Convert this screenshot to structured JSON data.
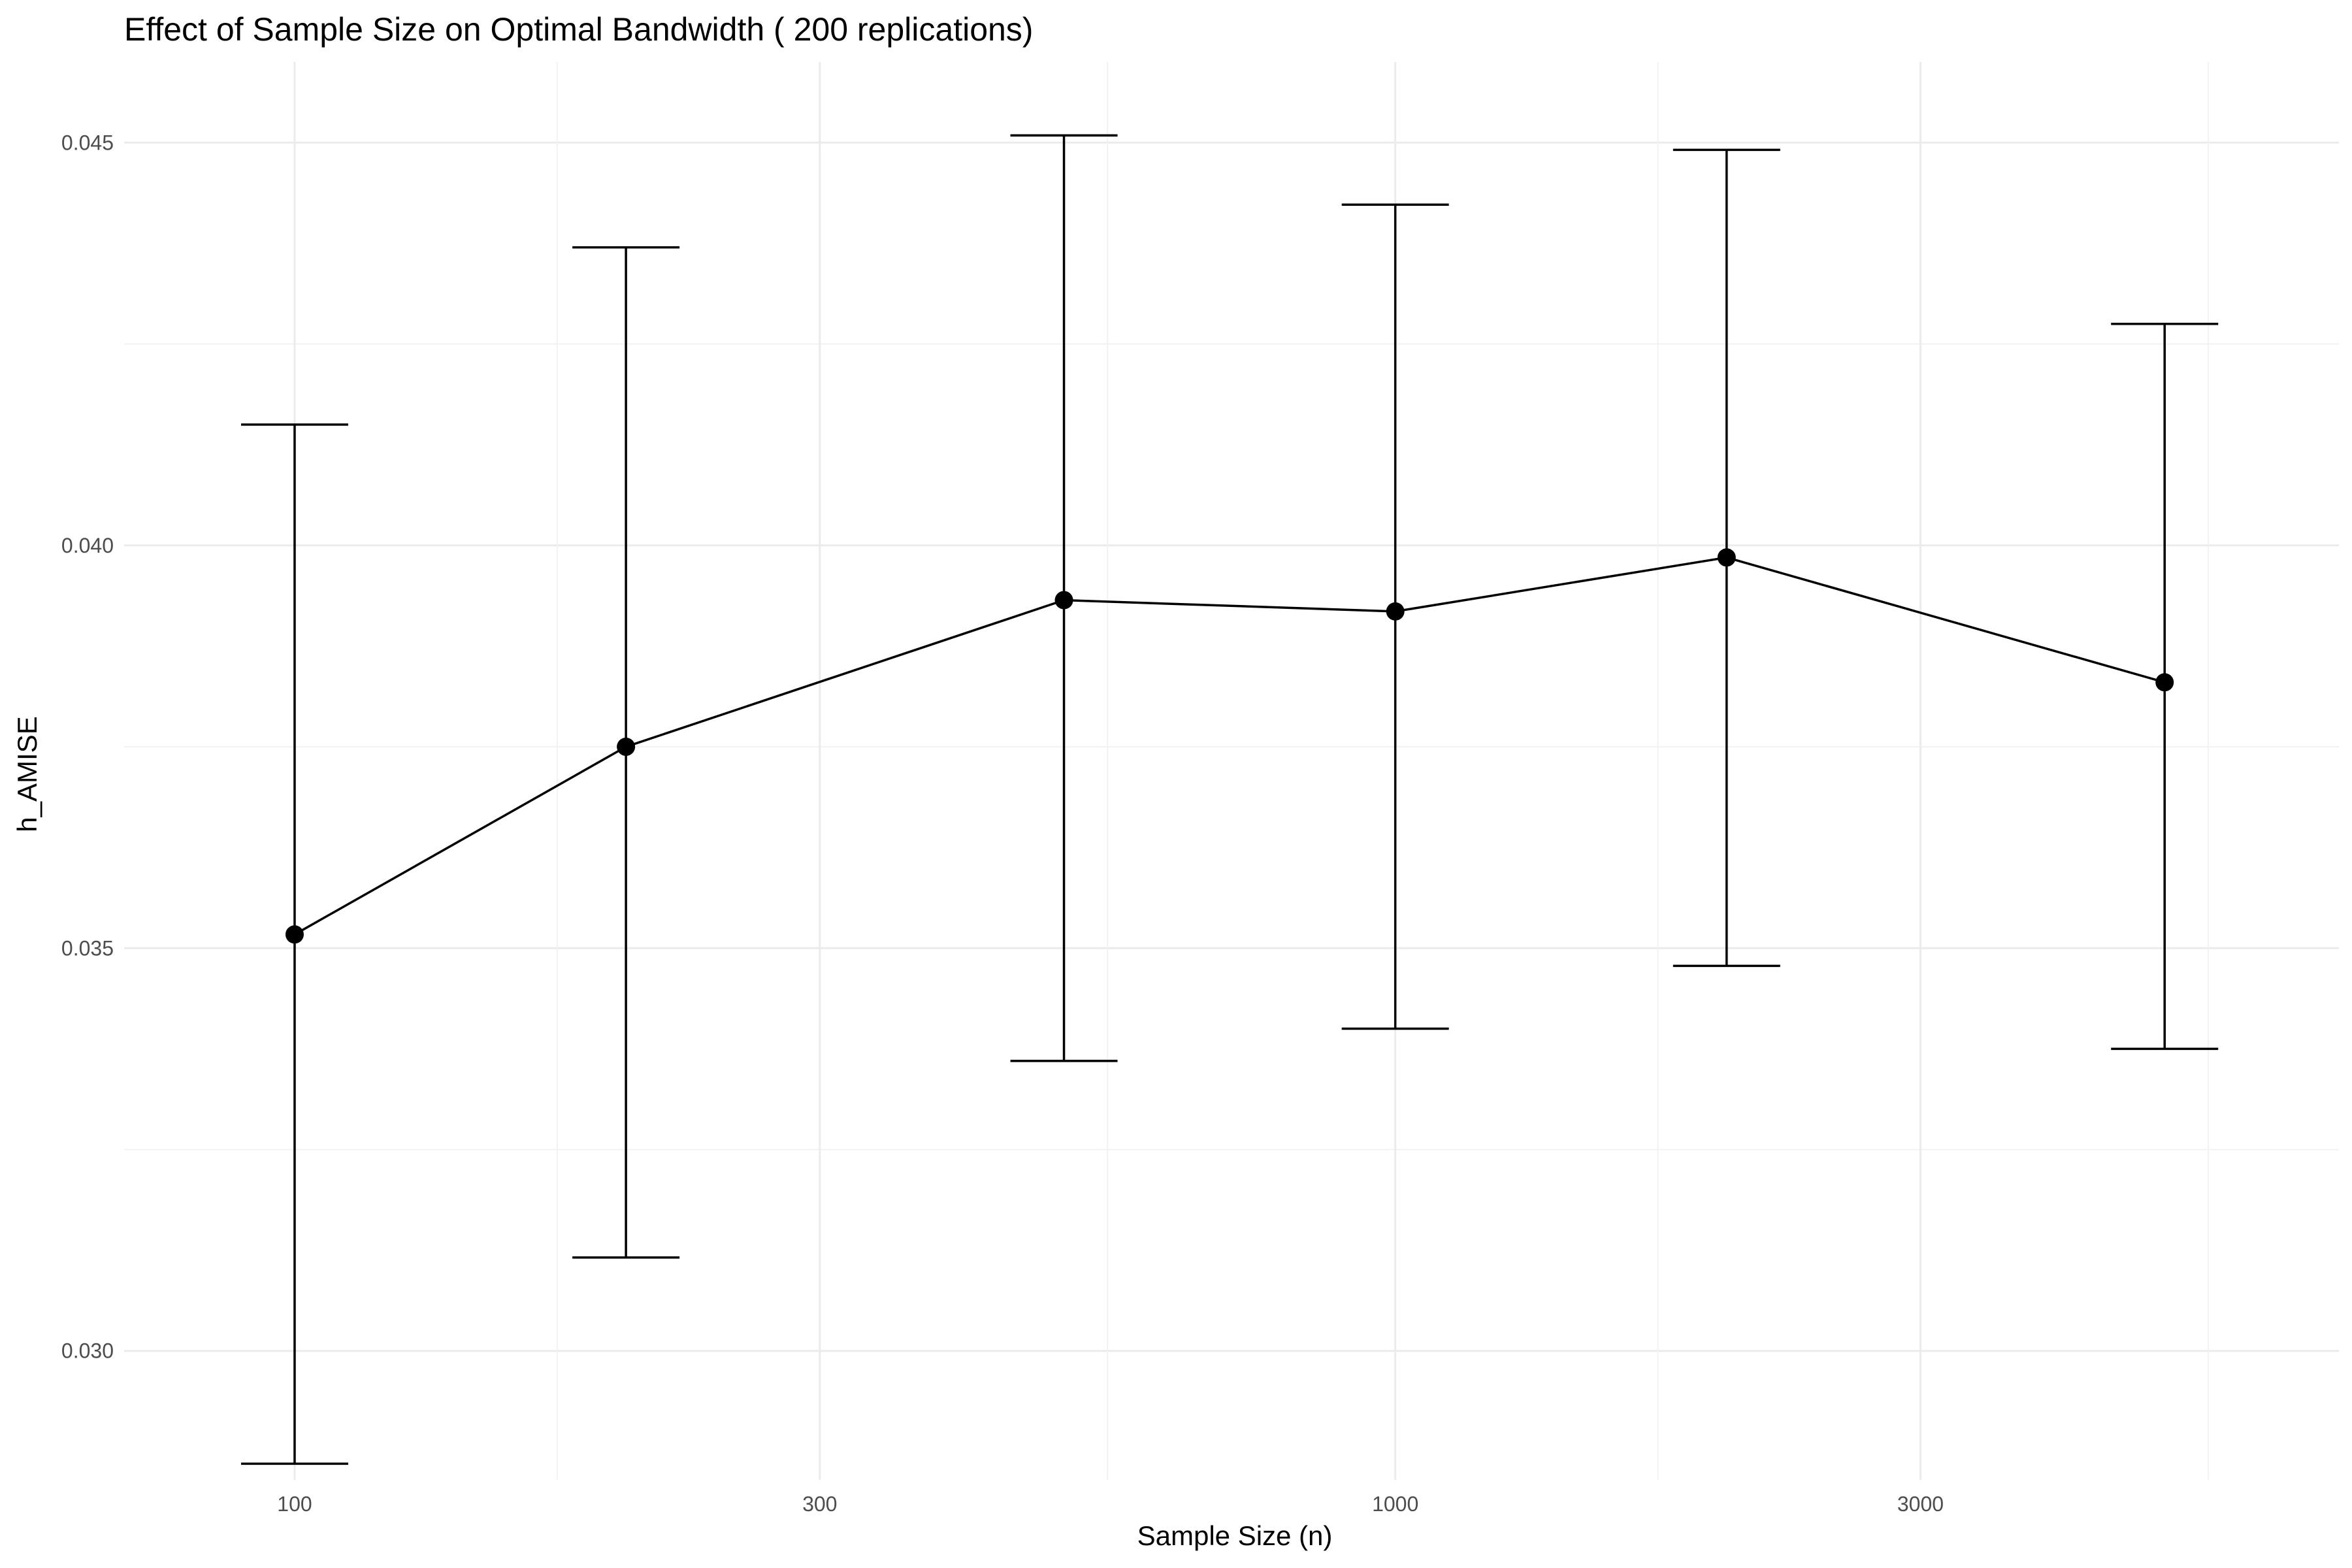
{
  "chart_data": {
    "type": "line",
    "title": "Effect of Sample Size on Optimal Bandwidth ( 200 replications)",
    "xlabel": "Sample Size (n)",
    "ylabel": "h_AMISE",
    "x_scale": "log10",
    "x_ticks": [
      100,
      300,
      1000,
      3000
    ],
    "x_tick_labels": [
      "100",
      "300",
      "1000",
      "3000"
    ],
    "y_ticks": [
      0.03,
      0.035,
      0.04,
      0.045
    ],
    "y_tick_labels": [
      "0.030",
      "0.035",
      "0.040",
      "0.045"
    ],
    "xlim": [
      70,
      7200
    ],
    "ylim": [
      0.0284,
      0.046
    ],
    "grid": true,
    "legend": "none",
    "series": [
      {
        "x": [
          100,
          200,
          500,
          1000,
          2000,
          5000
        ],
        "values": [
          0.03517,
          0.0375,
          0.03932,
          0.03918,
          0.03985,
          0.0383
        ],
        "lower": [
          0.0286,
          0.03116,
          0.0336,
          0.034,
          0.03478,
          0.03375
        ],
        "upper": [
          0.0415,
          0.0437,
          0.04509,
          0.04423,
          0.04491,
          0.04275
        ]
      }
    ]
  }
}
